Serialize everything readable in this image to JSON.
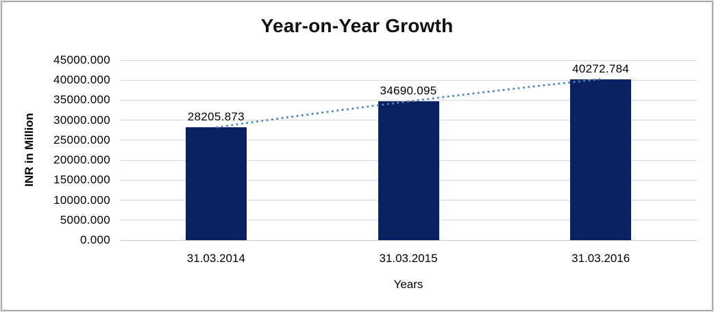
{
  "chart_data": {
    "type": "bar",
    "title": "Year-on-Year Growth",
    "categories": [
      "31.03.2014",
      "31.03.2015",
      "31.03.2016"
    ],
    "values": [
      28205.873,
      34690.095,
      40272.784
    ],
    "data_labels": [
      "28205.873",
      "34690.095",
      "40272.784"
    ],
    "xlabel": "Years",
    "ylabel": "INR in Million",
    "ylim": [
      0,
      45000
    ],
    "ytick_step": 5000,
    "ytick_labels": [
      "45000.000",
      "40000.000",
      "35000.000",
      "30000.000",
      "25000.000",
      "20000.000",
      "15000.000",
      "10000.000",
      "5000.000",
      "0.000"
    ],
    "grid": true,
    "legend": false,
    "trendline": {
      "style": "dotted"
    },
    "colors": {
      "bar": "#0a2161",
      "trendline": "#4a87c9",
      "gridline": "#d6d6d6",
      "axis_line": "#c9c9c9",
      "text": "#000000"
    }
  }
}
